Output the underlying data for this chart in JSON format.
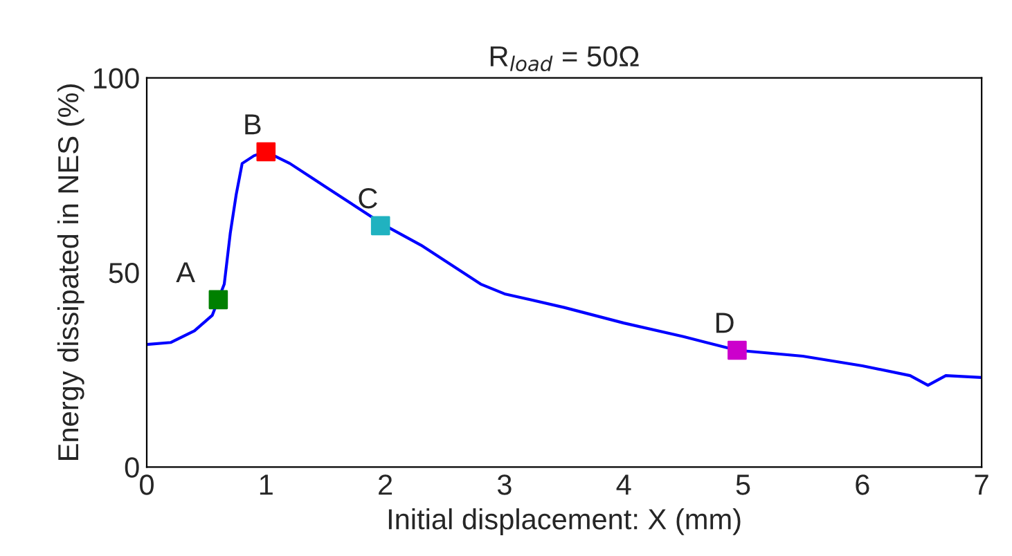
{
  "chart_data": {
    "type": "line",
    "title": "R$_{load}$ = 50Ω",
    "xlabel": "Initial displacement: X (mm)",
    "ylabel": "Energy dissipated in NES (%)",
    "xlim": [
      0,
      7
    ],
    "ylim": [
      0,
      100
    ],
    "xticks": [
      0,
      1,
      2,
      3,
      4,
      5,
      6,
      7
    ],
    "yticks": [
      0,
      50,
      100
    ],
    "grid": false,
    "legend": false,
    "series": [
      {
        "color": "#0000ff",
        "marker": "none",
        "line_style": "solid",
        "x": [
          0,
          0.2,
          0.4,
          0.55,
          0.6,
          0.65,
          0.7,
          0.75,
          0.8,
          0.9,
          1.0,
          1.2,
          1.5,
          2.0,
          2.3,
          2.6,
          2.8,
          3.0,
          3.5,
          4.0,
          4.5,
          4.95,
          5.5,
          6.0,
          6.4,
          6.55,
          6.7,
          7.0
        ],
        "values": [
          31.5,
          32,
          35,
          39,
          43,
          47,
          60,
          70,
          78,
          80,
          81,
          78,
          72,
          62,
          57,
          51,
          47,
          44.5,
          41,
          37,
          33.5,
          30,
          28.5,
          26,
          23.5,
          21,
          23.5,
          23
        ]
      },
      {
        "type": "scatter",
        "marker": "square",
        "x": [
          0.6,
          1.0,
          1.96,
          4.95
        ],
        "values": [
          43,
          81,
          62,
          30
        ],
        "colors": [
          "#008000",
          "#ff0000",
          "#20b2c0",
          "#cc00cc"
        ]
      }
    ],
    "annotations": [
      {
        "text": "A",
        "x": 0.6,
        "y": 43
      },
      {
        "text": "B",
        "x": 1.0,
        "y": 81
      },
      {
        "text": "C",
        "x": 1.96,
        "y": 62
      },
      {
        "text": "D",
        "x": 4.95,
        "y": 30
      }
    ]
  }
}
